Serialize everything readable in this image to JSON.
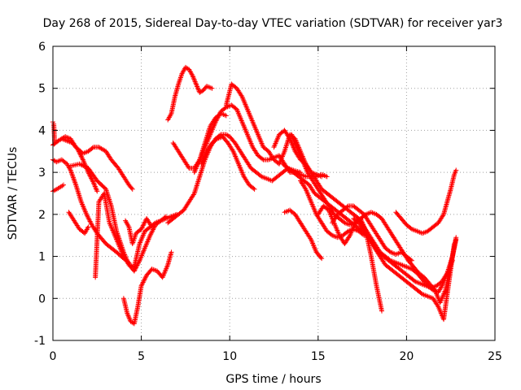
{
  "chart_data": {
    "type": "scatter",
    "title": "Day 268 of 2015, Sidereal Day-to-day VTEC variation (SDTVAR) for receiver yar3",
    "xlabel": "GPS time / hours",
    "ylabel": "SDTVAR / TECUs",
    "xlim": [
      0,
      25
    ],
    "ylim": [
      -1,
      6
    ],
    "xticks": [
      0,
      5,
      10,
      15,
      20,
      25
    ],
    "yticks": [
      -1,
      0,
      1,
      2,
      3,
      4,
      5,
      6
    ],
    "xtick_labels": [
      "0",
      "5",
      "10",
      "15",
      "20",
      "25"
    ],
    "ytick_labels": [
      "-1",
      "0",
      "1",
      "2",
      "3",
      "4",
      "5",
      "6"
    ],
    "grid": true,
    "marker": "+",
    "color": "#ff0000",
    "series": [
      {
        "name": "s1",
        "x": [
          0.0,
          0.3,
          0.7,
          1.0,
          1.3,
          1.7,
          2.0,
          2.3,
          2.6,
          3.0,
          3.3,
          3.7,
          4.0,
          4.3,
          4.5
        ],
        "y": [
          3.65,
          3.75,
          3.85,
          3.8,
          3.6,
          3.45,
          3.5,
          3.6,
          3.6,
          3.5,
          3.3,
          3.1,
          2.9,
          2.7,
          2.6
        ]
      },
      {
        "name": "s2",
        "x": [
          0.0,
          0.2,
          0.5,
          0.8,
          1.0,
          1.3,
          1.6,
          1.9,
          2.2,
          2.5,
          2.8,
          3.0,
          3.3,
          3.6,
          4.0,
          4.3
        ],
        "y": [
          3.3,
          3.25,
          3.3,
          3.2,
          3.05,
          2.7,
          2.3,
          2.0,
          1.75,
          1.55,
          1.4,
          1.3,
          1.2,
          1.1,
          0.95,
          0.85
        ]
      },
      {
        "name": "s3",
        "x": [
          0.5,
          0.8,
          1.1,
          1.4,
          1.7,
          2.0,
          2.3,
          2.5
        ],
        "y": [
          3.8,
          3.75,
          3.7,
          3.55,
          3.3,
          3.0,
          2.75,
          2.55
        ]
      },
      {
        "name": "s4",
        "x": [
          0.0,
          0.3,
          0.6
        ],
        "y": [
          2.55,
          2.62,
          2.7
        ]
      },
      {
        "name": "s5",
        "x": [
          0.0,
          0.05,
          0.1
        ],
        "y": [
          4.2,
          4.15,
          3.7
        ]
      },
      {
        "name": "s6",
        "x": [
          0.9,
          1.2,
          1.5,
          1.8,
          2.0
        ],
        "y": [
          2.05,
          1.85,
          1.65,
          1.55,
          1.7
        ]
      },
      {
        "name": "s7",
        "x": [
          2.4,
          2.6,
          2.9,
          3.2,
          3.5,
          3.8,
          4.0,
          4.3,
          4.6,
          4.9,
          5.2,
          5.5,
          5.8,
          6.1,
          6.4,
          6.7,
          7.0
        ],
        "y": [
          0.5,
          2.3,
          2.5,
          1.8,
          1.5,
          1.2,
          1.0,
          0.8,
          0.65,
          0.9,
          1.2,
          1.5,
          1.75,
          1.85,
          1.9,
          1.95,
          2.0
        ]
      },
      {
        "name": "s8",
        "x": [
          1.0,
          1.5,
          2.0,
          2.5,
          3.0,
          3.3,
          3.6,
          4.0,
          4.3,
          4.6,
          4.9,
          5.2,
          5.5,
          5.8,
          6.1,
          6.4
        ],
        "y": [
          3.15,
          3.2,
          3.1,
          2.8,
          2.6,
          2.2,
          1.6,
          1.1,
          0.8,
          0.75,
          1.3,
          1.6,
          1.7,
          1.8,
          1.85,
          1.95
        ]
      },
      {
        "name": "s9",
        "x": [
          4.0,
          4.2,
          4.4,
          4.6,
          4.8,
          5.0,
          5.3,
          5.6,
          5.9,
          6.2,
          6.5,
          6.7
        ],
        "y": [
          0.0,
          -0.35,
          -0.55,
          -0.6,
          -0.2,
          0.3,
          0.55,
          0.7,
          0.65,
          0.5,
          0.8,
          1.1
        ]
      },
      {
        "name": "s10",
        "x": [
          4.1,
          4.3,
          4.5,
          4.7,
          5.0,
          5.3,
          5.6
        ],
        "y": [
          1.85,
          1.7,
          1.3,
          1.55,
          1.65,
          1.9,
          1.7
        ]
      },
      {
        "name": "s11",
        "x": [
          6.5,
          6.8,
          7.1,
          7.4,
          7.7,
          8.0,
          8.3,
          8.6,
          8.9,
          9.2,
          9.5,
          9.8,
          10.0,
          10.3,
          10.6,
          10.9,
          11.2,
          11.5,
          11.8,
          12.1,
          12.4,
          12.7,
          13.0,
          13.3,
          13.6,
          14.0
        ],
        "y": [
          1.8,
          1.9,
          2.0,
          2.1,
          2.3,
          2.5,
          2.9,
          3.3,
          3.6,
          3.8,
          3.9,
          3.9,
          3.85,
          3.7,
          3.5,
          3.3,
          3.1,
          3.0,
          2.9,
          2.85,
          2.8,
          2.9,
          3.0,
          3.1,
          3.05,
          3.0
        ]
      },
      {
        "name": "s12",
        "x": [
          8.0,
          8.3,
          8.6,
          8.9,
          9.2,
          9.5,
          9.8,
          10.1,
          10.4,
          10.7,
          11.0,
          11.3,
          11.6,
          11.9,
          12.2,
          12.5,
          12.8,
          13.1,
          13.4,
          13.7,
          14.0,
          14.3,
          14.6,
          14.9,
          15.2,
          15.5
        ],
        "y": [
          3.0,
          3.3,
          3.6,
          3.9,
          4.2,
          4.45,
          4.55,
          4.6,
          4.5,
          4.2,
          3.9,
          3.6,
          3.4,
          3.3,
          3.3,
          3.35,
          3.4,
          3.2,
          3.0,
          3.0,
          2.95,
          2.9,
          2.9,
          2.9,
          2.95,
          2.9
        ]
      },
      {
        "name": "s13",
        "x": [
          6.5,
          6.7,
          6.9,
          7.1,
          7.3,
          7.5,
          7.7,
          7.9,
          8.1,
          8.3,
          8.5,
          8.7,
          9.0
        ],
        "y": [
          4.25,
          4.4,
          4.8,
          5.1,
          5.35,
          5.5,
          5.45,
          5.3,
          5.1,
          4.9,
          4.95,
          5.05,
          5.0
        ]
      },
      {
        "name": "s14",
        "x": [
          6.8,
          7.1,
          7.4,
          7.7,
          8.0,
          8.3,
          8.6,
          8.9,
          9.2,
          9.5,
          9.8
        ],
        "y": [
          3.7,
          3.5,
          3.3,
          3.1,
          3.1,
          3.3,
          3.7,
          4.1,
          4.3,
          4.4,
          4.35
        ]
      },
      {
        "name": "s15",
        "x": [
          9.8,
          10.1,
          10.4,
          10.7,
          11.0,
          11.3,
          11.6,
          11.9,
          12.2,
          12.5,
          12.8,
          13.1,
          13.4,
          13.7,
          14.0,
          14.3,
          14.6,
          14.9,
          15.2
        ],
        "y": [
          4.6,
          5.1,
          5.0,
          4.8,
          4.5,
          4.2,
          3.9,
          3.6,
          3.5,
          3.3,
          3.2,
          3.5,
          3.9,
          3.8,
          3.5,
          3.2,
          3.0,
          2.95,
          2.9
        ]
      },
      {
        "name": "s16",
        "x": [
          8.4,
          8.7,
          9.0,
          9.3,
          9.6,
          9.9,
          10.2,
          10.5,
          10.8,
          11.1,
          11.4
        ],
        "y": [
          3.2,
          3.5,
          3.7,
          3.8,
          3.85,
          3.7,
          3.5,
          3.2,
          2.9,
          2.7,
          2.6
        ]
      },
      {
        "name": "s17",
        "x": [
          12.5,
          12.8,
          13.1,
          13.4,
          13.7,
          14.0,
          14.3,
          14.6,
          14.9,
          15.2,
          15.5,
          15.8,
          16.1,
          16.4,
          16.7,
          17.0,
          17.3,
          17.6,
          17.9,
          18.2,
          18.5,
          18.8,
          19.1,
          19.4,
          19.7,
          20.0,
          20.3,
          20.6,
          20.9,
          21.2,
          21.5,
          21.8,
          22.0,
          22.3,
          22.6,
          22.8
        ],
        "y": [
          3.6,
          3.9,
          4.0,
          3.8,
          3.5,
          3.3,
          3.2,
          3.0,
          2.8,
          2.6,
          2.5,
          2.4,
          2.3,
          2.2,
          2.1,
          2.0,
          1.9,
          1.7,
          1.5,
          1.3,
          1.1,
          1.0,
          0.9,
          0.85,
          0.8,
          0.75,
          0.7,
          0.6,
          0.45,
          0.3,
          0.2,
          0.15,
          0.3,
          0.6,
          1.0,
          1.4
        ]
      },
      {
        "name": "s18",
        "x": [
          13.0,
          13.3,
          13.6,
          13.9,
          14.2,
          14.5,
          14.8,
          15.1,
          15.4,
          15.7,
          16.0,
          16.3,
          16.6,
          16.9,
          17.2,
          17.5,
          17.8,
          18.1,
          18.4,
          18.7,
          19.0,
          19.3,
          19.6,
          19.9,
          20.2,
          20.5,
          20.8,
          21.1,
          21.4,
          21.7,
          22.0,
          22.3,
          22.6
        ],
        "y": [
          3.2,
          3.1,
          3.0,
          2.9,
          2.8,
          2.7,
          2.5,
          2.4,
          2.3,
          2.2,
          2.1,
          2.0,
          1.9,
          1.8,
          1.7,
          1.6,
          1.5,
          1.3,
          1.1,
          1.0,
          0.9,
          0.8,
          0.7,
          0.6,
          0.5,
          0.4,
          0.35,
          0.3,
          0.25,
          0.3,
          0.4,
          0.6,
          0.9
        ]
      },
      {
        "name": "s19",
        "x": [
          13.5,
          13.8,
          14.1,
          14.4,
          14.7,
          15.0,
          15.3,
          15.6,
          15.9,
          16.2,
          16.5,
          16.8,
          17.1,
          17.4,
          17.7,
          18.0,
          18.3,
          18.6,
          18.9,
          19.2,
          19.5,
          19.8,
          20.1,
          20.4,
          20.7,
          21.0,
          21.3,
          21.6,
          21.9,
          22.2,
          22.5,
          22.8
        ],
        "y": [
          3.9,
          3.6,
          3.3,
          3.0,
          2.8,
          2.6,
          2.4,
          2.2,
          2.0,
          1.9,
          1.8,
          1.75,
          1.8,
          1.9,
          2.0,
          2.05,
          2.0,
          1.9,
          1.7,
          1.5,
          1.3,
          1.1,
          0.9,
          0.75,
          0.6,
          0.5,
          0.35,
          0.2,
          -0.1,
          0.2,
          0.8,
          1.45
        ]
      },
      {
        "name": "s20",
        "x": [
          13.1,
          13.4,
          13.7,
          14.0,
          14.3,
          14.6,
          14.9,
          15.2
        ],
        "y": [
          2.05,
          2.1,
          2.0,
          1.8,
          1.6,
          1.4,
          1.1,
          0.95
        ]
      },
      {
        "name": "s21",
        "x": [
          15.0,
          15.3,
          15.6,
          15.9,
          16.2,
          16.5,
          16.8,
          17.1,
          17.4,
          17.7,
          18.0,
          18.3,
          18.6
        ],
        "y": [
          2.0,
          2.2,
          2.1,
          1.8,
          1.5,
          1.3,
          1.5,
          1.8,
          1.9,
          1.6,
          1.0,
          0.3,
          -0.3
        ]
      },
      {
        "name": "s22",
        "x": [
          15.8,
          16.1,
          16.4,
          16.7,
          17.0,
          17.3,
          17.6,
          17.9,
          18.2,
          18.5,
          18.8,
          19.1,
          19.4,
          19.7,
          20.0,
          20.3
        ],
        "y": [
          1.8,
          2.0,
          2.1,
          2.2,
          2.2,
          2.1,
          2.0,
          1.8,
          1.6,
          1.4,
          1.2,
          1.1,
          1.05,
          1.1,
          1.0,
          0.9
        ]
      },
      {
        "name": "s23",
        "x": [
          19.4,
          19.7,
          20.0,
          20.3,
          20.6,
          20.9,
          21.2,
          21.5,
          21.8,
          22.1,
          22.3,
          22.5,
          22.7,
          22.8
        ],
        "y": [
          2.05,
          1.9,
          1.75,
          1.65,
          1.6,
          1.55,
          1.6,
          1.7,
          1.8,
          2.0,
          2.3,
          2.6,
          2.95,
          3.05
        ]
      },
      {
        "name": "s24",
        "x": [
          17.0,
          17.3,
          17.6,
          17.9,
          18.2,
          18.5,
          18.8,
          19.1,
          19.4,
          19.7,
          20.0,
          20.3,
          20.6,
          20.9,
          21.2,
          21.5,
          21.8,
          22.1,
          22.4,
          22.7
        ],
        "y": [
          1.9,
          1.8,
          1.6,
          1.4,
          1.2,
          1.0,
          0.8,
          0.7,
          0.6,
          0.5,
          0.4,
          0.3,
          0.2,
          0.1,
          0.05,
          0.0,
          -0.2,
          -0.5,
          0.4,
          1.3
        ]
      },
      {
        "name": "s25",
        "x": [
          14.0,
          14.3,
          14.6,
          14.9,
          15.2,
          15.5,
          15.8,
          16.1,
          16.4,
          16.7,
          17.0,
          17.3,
          17.6
        ],
        "y": [
          2.8,
          2.6,
          2.3,
          2.0,
          1.8,
          1.6,
          1.5,
          1.45,
          1.5,
          1.6,
          1.65,
          1.6,
          1.5
        ]
      }
    ]
  }
}
